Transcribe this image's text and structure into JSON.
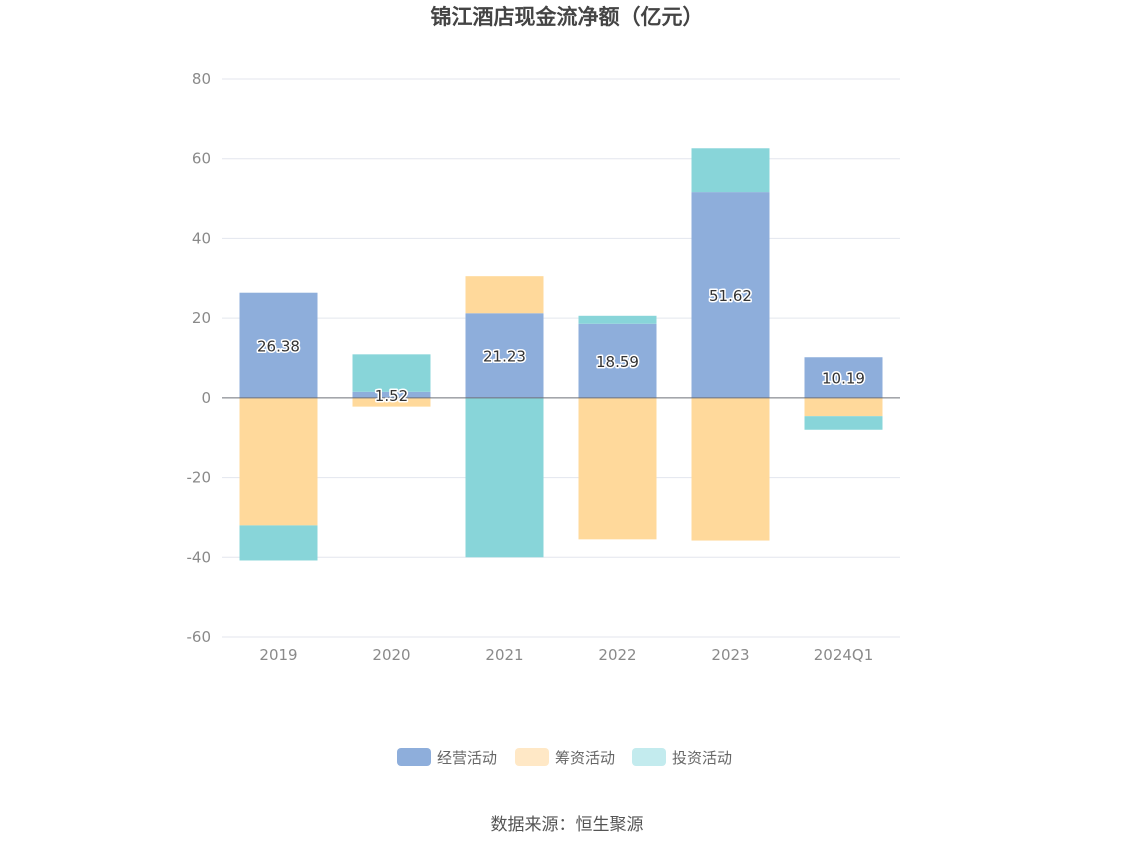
{
  "chart_data": {
    "type": "bar",
    "stacked": true,
    "title": "锦江酒店现金流净额（亿元）",
    "categories": [
      "2019",
      "2020",
      "2021",
      "2022",
      "2023",
      "2024Q1"
    ],
    "series": [
      {
        "name": "经营活动",
        "color": "#8eaedb",
        "values": [
          26.38,
          1.52,
          21.23,
          18.59,
          51.62,
          10.19
        ]
      },
      {
        "name": "筹资活动",
        "color": "#ffd99b",
        "values": [
          -32.0,
          -2.2,
          9.3,
          -35.5,
          -35.8,
          -4.6
        ]
      },
      {
        "name": "投资活动",
        "color": "#88d5d9",
        "values": [
          -8.8,
          9.4,
          -40.0,
          2.0,
          11.0,
          -3.4
        ]
      }
    ],
    "data_labels": [
      "26.38",
      "1.52",
      "21.23",
      "18.59",
      "51.62",
      "10.19"
    ],
    "yticks": [
      80,
      60,
      40,
      20,
      0,
      -20,
      -40,
      -60
    ],
    "ylim": [
      -60,
      80
    ],
    "grid": true,
    "legend_position": "bottom"
  },
  "source_text": "数据来源：恒生聚源",
  "colors": {
    "gridline": "#e3e6ee",
    "zero_line": "#6e7079",
    "legend_operating": "#8eaedb",
    "legend_financing": "#ffe8c6",
    "legend_investing": "#c3ebee"
  }
}
